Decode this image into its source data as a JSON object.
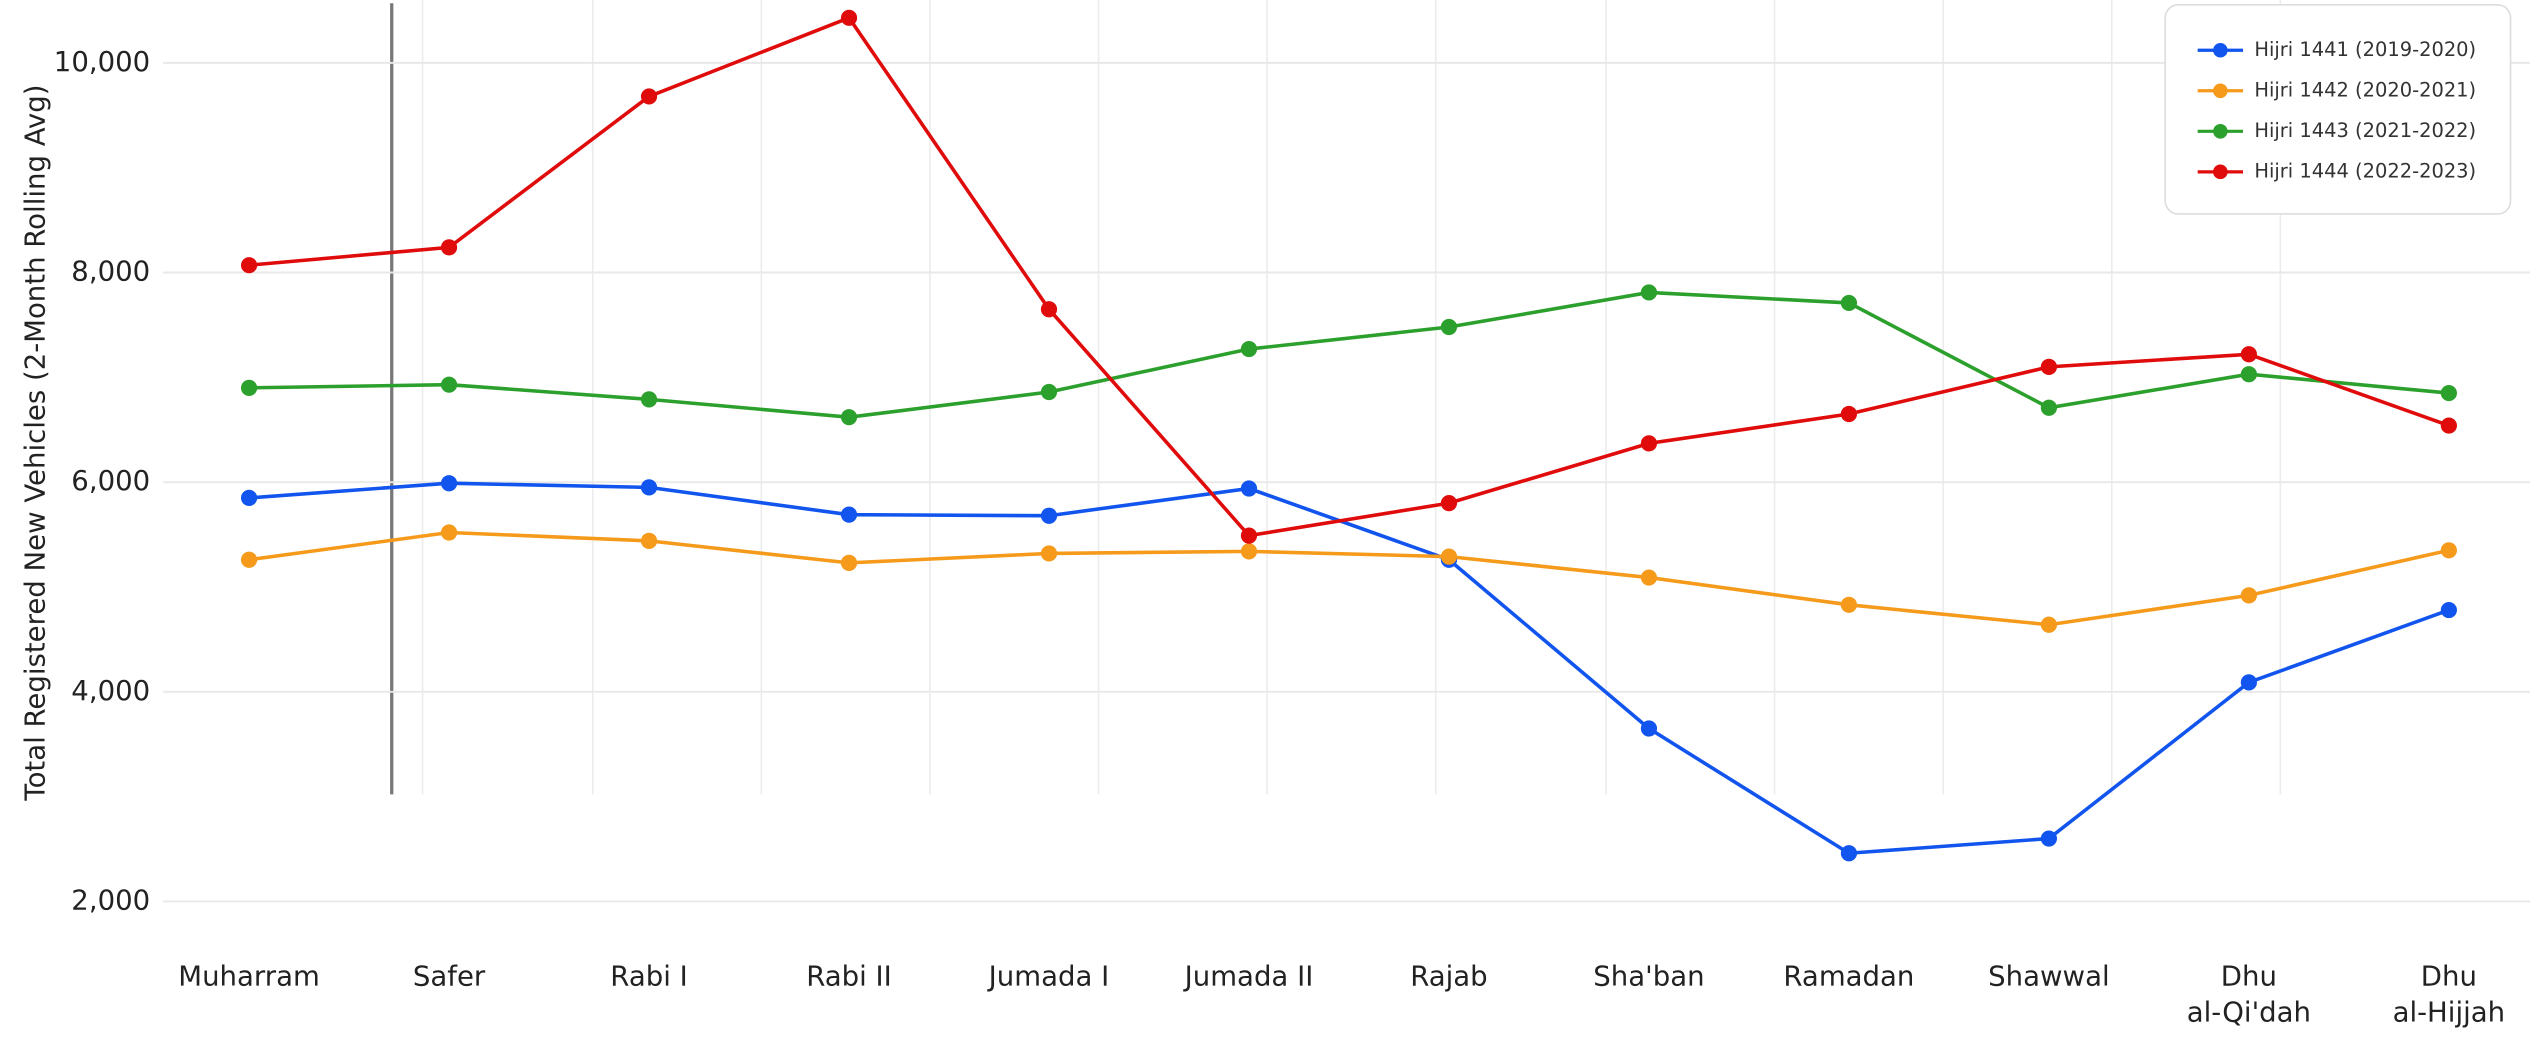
{
  "chart_data": {
    "type": "line",
    "y_label": "Total Registered New Vehicles (2-Month Rolling Avg)",
    "categories": [
      "Muharram",
      "Safer",
      "Rabi I",
      "Rabi II",
      "Jumada I",
      "Jumada II",
      "Rajab",
      "Sha'ban",
      "Ramadan",
      "Shawwal",
      "Dhu\nal-Qi'dah",
      "Dhu\nal-Hijjah"
    ],
    "ylim": [
      1800,
      10600
    ],
    "yticks": [
      {
        "value": 2000,
        "label": "2,000"
      },
      {
        "value": 4000,
        "label": "4,000"
      },
      {
        "value": 6000,
        "label": "6,000"
      },
      {
        "value": 8000,
        "label": "8,000"
      },
      {
        "value": 10000,
        "label": "10,000"
      }
    ],
    "grid": true,
    "legend": "upper right",
    "series": [
      {
        "name": "Hijri 1441 (2019-2020)",
        "color": "#1155ee",
        "values": [
          5850,
          5990,
          5950,
          5690,
          5680,
          5940,
          5260,
          3650,
          2460,
          2600,
          4090,
          4780
        ]
      },
      {
        "name": "Hijri 1442 (2020-2021)",
        "color": "#f59a1b",
        "values": [
          5260,
          5520,
          5440,
          5230,
          5320,
          5340,
          5290,
          5090,
          4830,
          4640,
          4920,
          5350
        ]
      },
      {
        "name": "Hijri 1443 (2021-2022)",
        "color": "#2ca02c",
        "values": [
          6900,
          6930,
          6790,
          6620,
          6860,
          7270,
          7480,
          7810,
          7710,
          6710,
          7030,
          6850
        ]
      },
      {
        "name": "Hijri 1444 (2022-2023)",
        "color": "#e00b0b",
        "values": [
          8070,
          8240,
          9680,
          10430,
          7650,
          5490,
          5800,
          6370,
          6650,
          7100,
          7220,
          6540
        ]
      }
    ]
  }
}
